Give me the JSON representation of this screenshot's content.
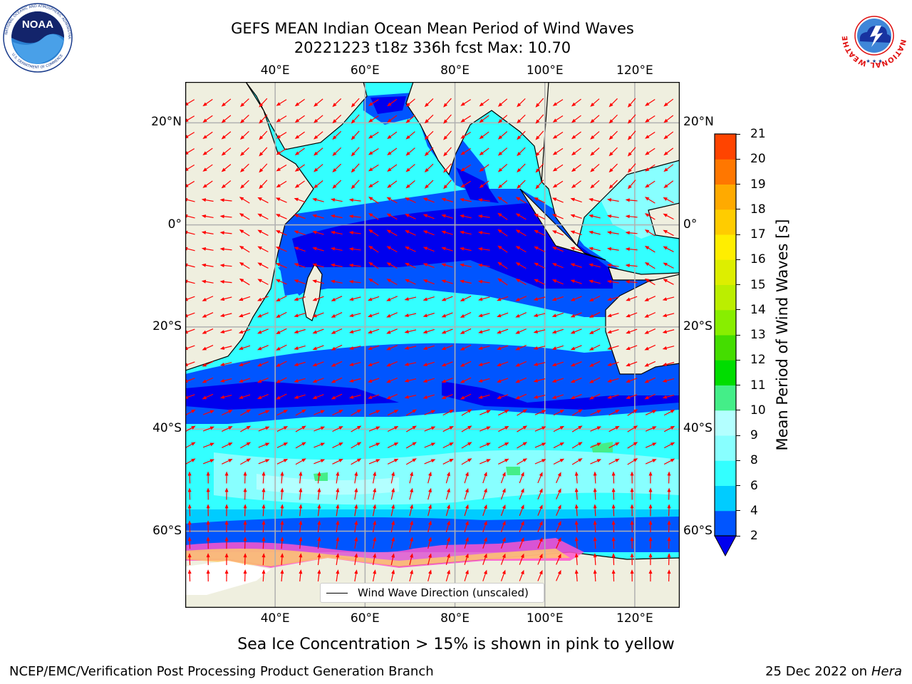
{
  "title_line1": "GEFS MEAN Indian Ocean Mean Period of Wind Waves",
  "title_line2": "20221223 t18z 336h fcst   Max: 10.70",
  "map": {
    "lon_ticks": [
      "40°E",
      "60°E",
      "80°E",
      "100°E",
      "120°E"
    ],
    "lon_values": [
      40,
      60,
      80,
      100,
      120
    ],
    "lat_ticks": [
      "20°N",
      "0°",
      "20°S",
      "40°S",
      "60°S"
    ],
    "lat_values": [
      20,
      0,
      -20,
      -40,
      -60
    ],
    "extent": {
      "lon_min": 20,
      "lon_max": 130,
      "lat_min": -75,
      "lat_max": 28
    },
    "land_color": "#efefdf",
    "gridlines": true
  },
  "legend": {
    "label": "Wind Wave Direction (unscaled)",
    "location": "lower-center"
  },
  "colorbar": {
    "label": "Mean Period of Wind Waves [s]",
    "ticks": [
      "2",
      "4",
      "6",
      "8",
      "9",
      "10",
      "11",
      "12",
      "13",
      "14",
      "15",
      "16",
      "17",
      "18",
      "19",
      "20",
      "21"
    ],
    "values": [
      2,
      4,
      6,
      8,
      9,
      10,
      11,
      12,
      13,
      14,
      15,
      16,
      17,
      18,
      19,
      20,
      21
    ],
    "colors": [
      "#0055ff",
      "#00ccff",
      "#33ffff",
      "#88ffff",
      "#b3ffff",
      "#44ee88",
      "#00dd00",
      "#44dd00",
      "#88ee00",
      "#bbee00",
      "#ddee00",
      "#ffee00",
      "#ffcc00",
      "#ffaa00",
      "#ff7700",
      "#ff4400",
      "#ff0000"
    ],
    "under_color": "#0000ee",
    "extend": "min"
  },
  "sea_ice_note": "Sea Ice Concentration > 15% is shown in pink to yellow",
  "footer_left": "NCEP/EMC/Verification Post Processing Product Generation Branch",
  "footer_right_date": "25 Dec 2022 on",
  "footer_right_machine": "Hera",
  "logos": {
    "noaa": {
      "name": "NOAA",
      "ring_text": "NATIONAL OCEANIC AND ATMOSPHERIC ADMINISTRATION",
      "bottom_text": "U.S. DEPARTMENT OF COMMERCE"
    },
    "nws": {
      "ring_text": "NATIONAL WEATHER SERVICE"
    }
  }
}
